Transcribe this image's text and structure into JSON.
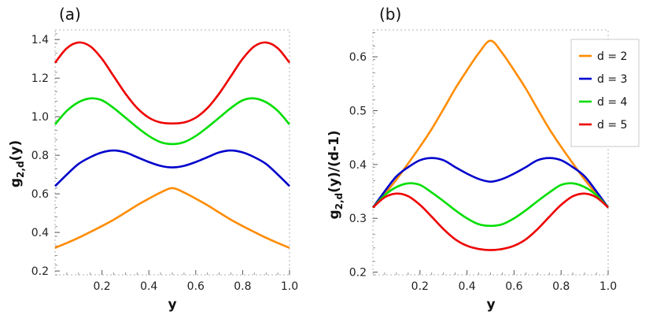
{
  "chart_data": [
    {
      "panel_label": "(a)",
      "type": "line",
      "xlabel": "y",
      "ylabel_main": "g",
      "ylabel_sub": "2,d",
      "ylabel_tail": "(y)",
      "xlim": [
        0.0,
        1.0
      ],
      "ylim": [
        0.18,
        1.45
      ],
      "xticks": [
        0.2,
        0.4,
        0.6,
        0.8,
        1.0
      ],
      "xtick_labels": [
        "0.2",
        "0.4",
        "0.6",
        "0.8",
        "1.0"
      ],
      "yticks": [
        0.2,
        0.4,
        0.6,
        0.8,
        1.0,
        1.2,
        1.4
      ],
      "ytick_labels": [
        "0.2",
        "0.4",
        "0.6",
        "0.8",
        "1.0",
        "1.2",
        "1.4"
      ],
      "x": [
        0.0,
        0.05,
        0.1,
        0.15,
        0.2,
        0.25,
        0.3,
        0.35,
        0.4,
        0.45,
        0.5,
        0.55,
        0.6,
        0.65,
        0.7,
        0.75,
        0.8,
        0.85,
        0.9,
        0.95,
        1.0
      ],
      "series": [
        {
          "name": "d = 2",
          "color": "#ff8c00",
          "values": [
            0.32,
            0.345,
            0.372,
            0.402,
            0.433,
            0.466,
            0.503,
            0.541,
            0.575,
            0.607,
            0.63,
            0.607,
            0.575,
            0.541,
            0.503,
            0.466,
            0.433,
            0.402,
            0.372,
            0.345,
            0.32
          ]
        },
        {
          "name": "d = 3",
          "color": "#0000cc",
          "values": [
            0.64,
            0.7,
            0.755,
            0.79,
            0.815,
            0.825,
            0.815,
            0.79,
            0.765,
            0.745,
            0.737,
            0.745,
            0.765,
            0.79,
            0.815,
            0.825,
            0.815,
            0.79,
            0.755,
            0.7,
            0.64
          ]
        },
        {
          "name": "d = 4",
          "color": "#00dd00",
          "values": [
            0.96,
            1.03,
            1.075,
            1.095,
            1.085,
            1.045,
            0.995,
            0.945,
            0.9,
            0.868,
            0.858,
            0.868,
            0.9,
            0.945,
            0.995,
            1.045,
            1.085,
            1.095,
            1.075,
            1.03,
            0.96
          ]
        },
        {
          "name": "d = 5",
          "color": "#ee0000",
          "values": [
            1.28,
            1.355,
            1.385,
            1.365,
            1.3,
            1.21,
            1.12,
            1.045,
            0.995,
            0.97,
            0.965,
            0.97,
            0.995,
            1.045,
            1.12,
            1.21,
            1.3,
            1.365,
            1.385,
            1.355,
            1.28
          ]
        }
      ]
    },
    {
      "panel_label": "(b)",
      "type": "line",
      "xlabel": "y",
      "ylabel_main": "g",
      "ylabel_sub": "2,d",
      "ylabel_tail": "(y)/(d-1)",
      "xlim": [
        0.0,
        1.0
      ],
      "ylim": [
        0.195,
        0.65
      ],
      "xticks": [
        0.2,
        0.4,
        0.6,
        0.8,
        1.0
      ],
      "xtick_labels": [
        "0.2",
        "0.4",
        "0.6",
        "0.8",
        "1.0"
      ],
      "yticks": [
        0.2,
        0.3,
        0.4,
        0.5,
        0.6
      ],
      "ytick_labels": [
        "0.2",
        "0.3",
        "0.4",
        "0.5",
        "0.6"
      ],
      "x": [
        0.0,
        0.05,
        0.1,
        0.15,
        0.2,
        0.25,
        0.3,
        0.35,
        0.4,
        0.45,
        0.5,
        0.55,
        0.6,
        0.65,
        0.7,
        0.75,
        0.8,
        0.85,
        0.9,
        0.95,
        1.0
      ],
      "series": [
        {
          "name": "d = 2",
          "color": "#ff8c00",
          "values": [
            0.32,
            0.345,
            0.372,
            0.402,
            0.433,
            0.466,
            0.503,
            0.541,
            0.575,
            0.607,
            0.63,
            0.607,
            0.575,
            0.541,
            0.503,
            0.466,
            0.433,
            0.402,
            0.372,
            0.345,
            0.32
          ]
        },
        {
          "name": "d = 3",
          "color": "#0000cc",
          "values": [
            0.32,
            0.35,
            0.378,
            0.395,
            0.408,
            0.412,
            0.408,
            0.395,
            0.383,
            0.373,
            0.368,
            0.373,
            0.383,
            0.395,
            0.408,
            0.412,
            0.408,
            0.395,
            0.378,
            0.35,
            0.32
          ]
        },
        {
          "name": "d = 4",
          "color": "#00dd00",
          "values": [
            0.32,
            0.343,
            0.358,
            0.365,
            0.362,
            0.348,
            0.332,
            0.315,
            0.3,
            0.289,
            0.286,
            0.289,
            0.3,
            0.315,
            0.332,
            0.348,
            0.362,
            0.365,
            0.358,
            0.343,
            0.32
          ]
        },
        {
          "name": "d = 5",
          "color": "#ee0000",
          "values": [
            0.32,
            0.339,
            0.346,
            0.341,
            0.325,
            0.303,
            0.28,
            0.261,
            0.249,
            0.243,
            0.241,
            0.243,
            0.249,
            0.261,
            0.28,
            0.303,
            0.325,
            0.341,
            0.346,
            0.339,
            0.32
          ]
        }
      ],
      "legend": {
        "placement": "top-right",
        "entries": [
          "d = 2",
          "d = 3",
          "d = 4",
          "d = 5"
        ]
      }
    }
  ]
}
